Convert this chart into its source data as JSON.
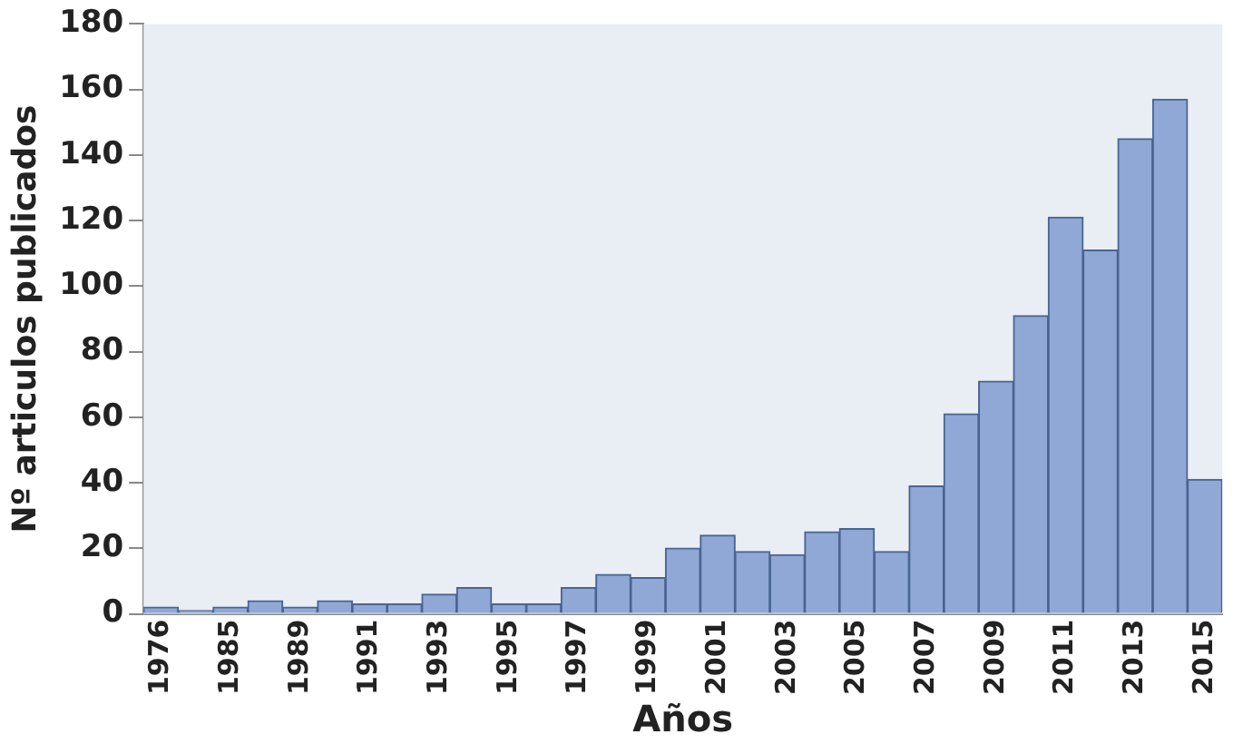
{
  "chart_data": {
    "type": "bar",
    "xlabel": "Años",
    "ylabel": "Nº articulos publicados",
    "categories": [
      "1976",
      null,
      "1985",
      null,
      "1989",
      null,
      "1991",
      null,
      "1993",
      null,
      "1995",
      null,
      "1997",
      null,
      "1999",
      null,
      "2001",
      null,
      "2003",
      null,
      "2005",
      null,
      "2007",
      null,
      "2009",
      null,
      "2011",
      null,
      "2013",
      null,
      "2015"
    ],
    "values": [
      2,
      1,
      2,
      4,
      2,
      4,
      3,
      3,
      6,
      8,
      3,
      3,
      8,
      12,
      11,
      20,
      24,
      19,
      18,
      25,
      26,
      19,
      39,
      61,
      71,
      91,
      121,
      111,
      145,
      157,
      41
    ],
    "color": "#8fa8d5",
    "ylim": [
      0,
      180
    ],
    "yticks": [
      0,
      20,
      40,
      60,
      80,
      100,
      120,
      140,
      160,
      180
    ],
    "grid": false,
    "legend": false
  }
}
